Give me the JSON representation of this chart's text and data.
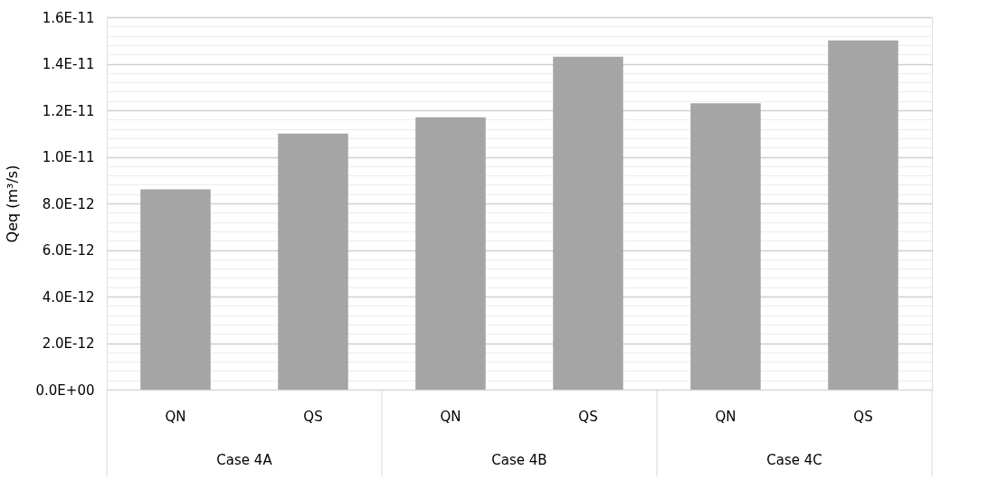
{
  "chart_data": {
    "type": "bar",
    "ylabel": "Qeq (m³/s)",
    "categories": [
      "QN",
      "QS",
      "QN",
      "QS",
      "QN",
      "QS"
    ],
    "values": [
      8.6e-12,
      1.1e-11,
      1.17e-11,
      1.43e-11,
      1.23e-11,
      1.5e-11
    ],
    "color": "#a5a5a5",
    "annotations": [
      "Case 4A",
      "Case 4B",
      "Case 4C"
    ],
    "ylim": [
      0,
      1.6e-11
    ],
    "yticks": [
      {
        "value": 0,
        "label": "0.0E+00"
      },
      {
        "value": 4e-13,
        "label": null
      },
      {
        "value": 8e-13,
        "label": null
      },
      {
        "value": 1.2e-12,
        "label": null
      },
      {
        "value": 1.6e-12,
        "label": null
      },
      {
        "value": 2e-12,
        "label": "2.0E-12"
      },
      {
        "value": 2.4e-12,
        "label": null
      },
      {
        "value": 2.8e-12,
        "label": null
      },
      {
        "value": 3.2e-12,
        "label": null
      },
      {
        "value": 3.6e-12,
        "label": null
      },
      {
        "value": 4e-12,
        "label": "4.0E-12"
      },
      {
        "value": 4.4e-12,
        "label": null
      },
      {
        "value": 4.8e-12,
        "label": null
      },
      {
        "value": 5.2e-12,
        "label": null
      },
      {
        "value": 5.6e-12,
        "label": null
      },
      {
        "value": 6e-12,
        "label": "6.0E-12"
      },
      {
        "value": 6.4e-12,
        "label": null
      },
      {
        "value": 6.8e-12,
        "label": null
      },
      {
        "value": 7.2e-12,
        "label": null
      },
      {
        "value": 7.6e-12,
        "label": null
      },
      {
        "value": 8e-12,
        "label": "8.0E-12"
      },
      {
        "value": 8.4e-12,
        "label": null
      },
      {
        "value": 8.8e-12,
        "label": null
      },
      {
        "value": 9.2e-12,
        "label": null
      },
      {
        "value": 9.6e-12,
        "label": null
      },
      {
        "value": 1e-11,
        "label": "1.0E-11"
      },
      {
        "value": 1.04e-11,
        "label": null
      },
      {
        "value": 1.08e-11,
        "label": null
      },
      {
        "value": 1.12e-11,
        "label": null
      },
      {
        "value": 1.16e-11,
        "label": null
      },
      {
        "value": 1.2e-11,
        "label": "1.2E-11"
      },
      {
        "value": 1.24e-11,
        "label": null
      },
      {
        "value": 1.28e-11,
        "label": null
      },
      {
        "value": 1.32e-11,
        "label": null
      },
      {
        "value": 1.36e-11,
        "label": null
      },
      {
        "value": 1.4e-11,
        "label": "1.4E-11"
      },
      {
        "value": 1.44e-11,
        "label": null
      },
      {
        "value": 1.48e-11,
        "label": null
      },
      {
        "value": 1.52e-11,
        "label": null
      },
      {
        "value": 1.56e-11,
        "label": null
      },
      {
        "value": 1.6e-11,
        "label": "1.6E-11"
      }
    ],
    "grid": "y"
  }
}
